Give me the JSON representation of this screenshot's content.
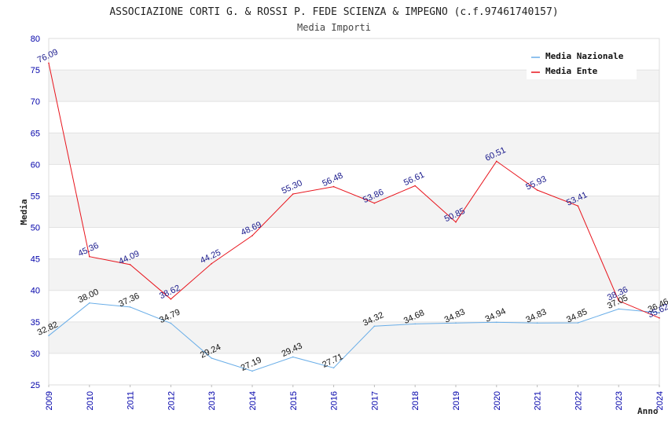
{
  "chart_data": {
    "type": "line",
    "title": "ASSOCIAZIONE CORTI G. & ROSSI P. FEDE SCIENZA & IMPEGNO (c.f.97461740157)",
    "subtitle": "Media Importi",
    "xlabel": "Anno",
    "ylabel": "Media",
    "ylim": [
      25,
      80
    ],
    "yticks": [
      "25",
      "30",
      "35",
      "40",
      "45",
      "50",
      "55",
      "60",
      "65",
      "70",
      "75",
      "80"
    ],
    "x": [
      "2009",
      "2010",
      "2011",
      "2012",
      "2013",
      "2014",
      "2015",
      "2016",
      "2017",
      "2018",
      "2019",
      "2020",
      "2021",
      "2022",
      "2023",
      "2024"
    ],
    "grid": "horizontal bands",
    "legend_position": "top-right",
    "series": [
      {
        "name": "Media Nazionale",
        "color": "#6aaee8",
        "values": [
          32.82,
          38.0,
          37.36,
          34.79,
          29.24,
          27.19,
          29.43,
          27.71,
          34.32,
          34.68,
          34.83,
          34.94,
          34.83,
          34.85,
          37.05,
          36.46
        ],
        "labels": [
          "32.82",
          "38.00",
          "37.36",
          "34.79",
          "29.24",
          "27.19",
          "29.43",
          "27.71",
          "34.32",
          "34.68",
          "34.83",
          "34.94",
          "34.83",
          "34.85",
          "37.05",
          "36.46"
        ]
      },
      {
        "name": "Media Ente",
        "color": "#e8141c",
        "values": [
          76.09,
          45.36,
          44.09,
          38.62,
          44.25,
          48.69,
          55.3,
          56.48,
          53.86,
          56.61,
          50.85,
          60.51,
          55.93,
          53.41,
          38.36,
          35.62
        ],
        "labels": [
          "76.09",
          "45.36",
          "44.09",
          "38.62",
          "44.25",
          "48.69",
          "55.30",
          "56.48",
          "53.86",
          "56.61",
          "50.85",
          "60.51",
          "55.93",
          "53.41",
          "38.36",
          "35.62"
        ]
      }
    ]
  }
}
